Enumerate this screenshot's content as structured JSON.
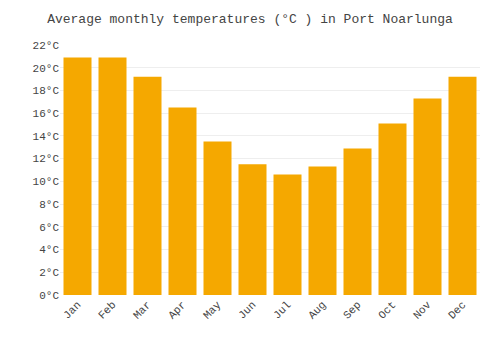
{
  "chart_data": {
    "type": "bar",
    "title": "Average monthly temperatures (°C ) in Port Noarlunga",
    "categories": [
      "Jan",
      "Feb",
      "Mar",
      "Apr",
      "May",
      "Jun",
      "Jul",
      "Aug",
      "Sep",
      "Oct",
      "Nov",
      "Dec"
    ],
    "values": [
      20.9,
      20.9,
      19.2,
      16.5,
      13.5,
      11.5,
      10.6,
      11.3,
      12.9,
      15.1,
      17.3,
      19.2
    ],
    "color": "#F5A800",
    "ylim": [
      0,
      22
    ],
    "yticks": [
      {
        "value": 0,
        "label": "0°C"
      },
      {
        "value": 2,
        "label": "2°C"
      },
      {
        "value": 4,
        "label": "4°C"
      },
      {
        "value": 6,
        "label": "6°C"
      },
      {
        "value": 8,
        "label": "8°C"
      },
      {
        "value": 10,
        "label": "10°C"
      },
      {
        "value": 12,
        "label": "12°C"
      },
      {
        "value": 14,
        "label": "14°C"
      },
      {
        "value": 16,
        "label": "16°C"
      },
      {
        "value": 18,
        "label": "18°C"
      },
      {
        "value": 20,
        "label": "20°C"
      },
      {
        "value": 22,
        "label": "22°C"
      }
    ],
    "grid": true
  }
}
